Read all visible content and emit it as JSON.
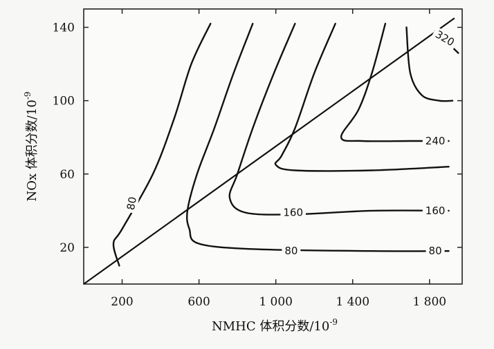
{
  "chart_data": {
    "type": "contour",
    "xlabel": "NMHC 体积分数/10",
    "xlabel_exp": "-9",
    "ylabel": "NOx 体积分数/10",
    "ylabel_exp": "-9",
    "xlim": [
      0,
      1970
    ],
    "ylim": [
      0,
      150
    ],
    "x_ticks": [
      200,
      600,
      1000,
      1400,
      1800
    ],
    "x_tick_labels": [
      "200",
      "600",
      "1 000",
      "1 400",
      "1 800"
    ],
    "y_ticks": [
      20,
      60,
      100,
      140
    ],
    "y_tick_labels": [
      "20",
      "60",
      "100",
      "140"
    ],
    "ridge_line": {
      "x": [
        0,
        1930
      ],
      "y": [
        0,
        145
      ]
    },
    "contours": [
      {
        "label": "80",
        "points": [
          [
            660,
            142
          ],
          [
            560,
            120
          ],
          [
            470,
            90
          ],
          [
            360,
            60
          ],
          [
            200,
            30
          ],
          [
            155,
            22
          ],
          [
            185,
            10
          ]
        ]
      },
      {
        "label": "",
        "points": [
          [
            880,
            142
          ],
          [
            780,
            115
          ],
          [
            680,
            85
          ],
          [
            590,
            60
          ],
          [
            540,
            40
          ],
          [
            550,
            30
          ],
          [
            600,
            22
          ],
          [
            900,
            19
          ],
          [
            1500,
            18
          ],
          [
            1900,
            18
          ]
        ]
      },
      {
        "label": "160",
        "points": [
          [
            1100,
            142
          ],
          [
            990,
            115
          ],
          [
            880,
            85
          ],
          [
            800,
            60
          ],
          [
            760,
            47
          ],
          [
            840,
            39
          ],
          [
            1100,
            38
          ],
          [
            1500,
            40
          ],
          [
            1900,
            40
          ]
        ]
      },
      {
        "label": "",
        "points": [
          [
            1310,
            142
          ],
          [
            1200,
            115
          ],
          [
            1100,
            85
          ],
          [
            1030,
            70
          ],
          [
            1000,
            65
          ],
          [
            1100,
            62
          ],
          [
            1500,
            62
          ],
          [
            1900,
            64
          ]
        ]
      },
      {
        "label": "240",
        "points": [
          [
            1570,
            142
          ],
          [
            1500,
            115
          ],
          [
            1430,
            95
          ],
          [
            1340,
            80
          ],
          [
            1450,
            78
          ],
          [
            1700,
            78
          ],
          [
            1900,
            78
          ]
        ]
      },
      {
        "label": "",
        "points": [
          [
            1680,
            140
          ],
          [
            1700,
            115
          ],
          [
            1760,
            103
          ],
          [
            1850,
            100
          ],
          [
            1920,
            100
          ]
        ]
      },
      {
        "label": "320",
        "points": [
          [
            1830,
            138
          ],
          [
            1900,
            131
          ],
          [
            1950,
            126
          ]
        ]
      }
    ],
    "contour_labels": [
      {
        "text": "80",
        "x": 250,
        "y": 44,
        "rotate": -80
      },
      {
        "text": "80",
        "x": 1080,
        "y": 18,
        "rotate": 0
      },
      {
        "text": "80",
        "x": 1830,
        "y": 18,
        "rotate": 0
      },
      {
        "text": "160",
        "x": 1090,
        "y": 39,
        "rotate": 0
      },
      {
        "text": "160",
        "x": 1830,
        "y": 40,
        "rotate": 0
      },
      {
        "text": "240",
        "x": 1830,
        "y": 78,
        "rotate": 0
      },
      {
        "text": "320",
        "x": 1880,
        "y": 134,
        "rotate": 30
      }
    ]
  }
}
